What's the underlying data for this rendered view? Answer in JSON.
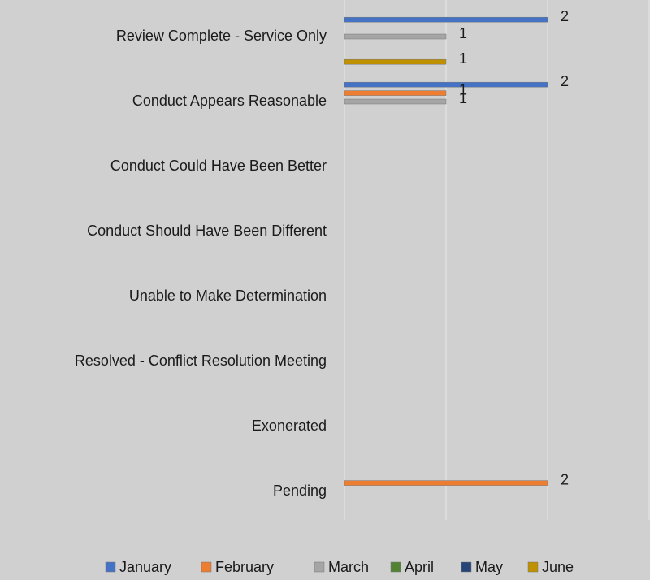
{
  "chart_data": {
    "type": "bar",
    "orientation": "horizontal",
    "categories": [
      "Review Complete - Service Only",
      "Conduct Appears Reasonable",
      "Conduct Could Have Been Better",
      "Conduct Should Have Been Different",
      "Unable to Make Determination",
      "Resolved - Conflict Resolution Meeting",
      "Exonerated",
      "Pending"
    ],
    "series": [
      {
        "name": "January",
        "color": "#4472c4",
        "values": [
          2,
          2,
          null,
          null,
          null,
          null,
          null,
          null
        ]
      },
      {
        "name": "February",
        "color": "#ed7d31",
        "values": [
          null,
          1,
          null,
          null,
          null,
          null,
          null,
          2
        ]
      },
      {
        "name": "March",
        "color": "#a5a5a5",
        "values": [
          1,
          1,
          null,
          null,
          null,
          null,
          null,
          null
        ]
      },
      {
        "name": "April",
        "color": "#548235",
        "values": [
          null,
          null,
          null,
          null,
          null,
          null,
          null,
          null
        ]
      },
      {
        "name": "May",
        "color": "#264478",
        "values": [
          null,
          null,
          null,
          null,
          null,
          null,
          null,
          null
        ]
      },
      {
        "name": "June",
        "color": "#bf9000",
        "values": [
          1,
          null,
          null,
          null,
          null,
          null,
          null,
          null
        ]
      }
    ],
    "xlim": [
      0,
      3
    ],
    "xticks": [
      0,
      1,
      2,
      3
    ],
    "grid": true,
    "legend": "bottom"
  }
}
